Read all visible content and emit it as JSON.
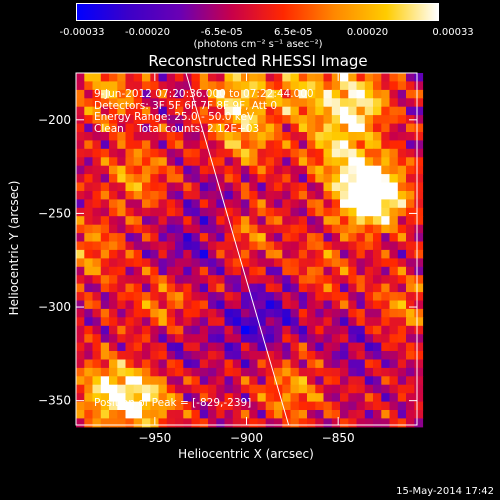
{
  "colorbar": {
    "ticks": [
      "-0.00033",
      "-0.00020",
      "-6.5e-05",
      "6.5e-05",
      "0.00020",
      "0.00033"
    ],
    "units": "(photons cm⁻² s⁻¹ asec⁻²)",
    "colors": [
      "#0000ff",
      "#3c00c8",
      "#6a00b4",
      "#c8004a",
      "#ff2800",
      "#ff8800",
      "#ffcc00",
      "#ffffff"
    ]
  },
  "chart_data": {
    "type": "heatmap",
    "title": "Reconstructed RHESSI Image",
    "xlabel": "Heliocentric X (arcsec)",
    "ylabel": "Heliocentric Y (arcsec)",
    "xlim": [
      -993,
      -807
    ],
    "ylim": [
      -363,
      -175
    ],
    "x_ticks": [
      -950,
      -900,
      -850
    ],
    "y_ticks": [
      -200,
      -250,
      -300,
      -350
    ],
    "x_tick_labels": [
      "−950",
      "−900",
      "−850"
    ],
    "y_tick_labels": [
      "−200",
      "−250",
      "−300",
      "−350"
    ],
    "color_range": [
      -0.00033,
      0.00033
    ],
    "peak_position": [
      -829,
      -239
    ],
    "limb_line": [
      [
        -933,
        -175
      ],
      [
        -877,
        -363
      ]
    ],
    "hotspots": [
      {
        "x": -840,
        "y": -190,
        "v": 0.00033
      },
      {
        "x": -836,
        "y": -240,
        "v": 0.0003
      },
      {
        "x": -829,
        "y": -239,
        "v": 0.00033
      },
      {
        "x": -850,
        "y": -215,
        "v": 0.00024
      },
      {
        "x": -900,
        "y": -210,
        "v": 0.0002
      },
      {
        "x": -905,
        "y": -185,
        "v": 0.00025
      },
      {
        "x": -870,
        "y": -185,
        "v": 0.00022
      },
      {
        "x": -960,
        "y": -230,
        "v": 0.00018
      },
      {
        "x": -975,
        "y": -185,
        "v": 0.0002
      },
      {
        "x": -975,
        "y": -345,
        "v": 0.0003
      },
      {
        "x": -955,
        "y": -350,
        "v": 0.00026
      },
      {
        "x": -875,
        "y": -345,
        "v": 0.00018
      },
      {
        "x": -985,
        "y": -270,
        "v": 0.00016
      },
      {
        "x": -900,
        "y": -260,
        "v": 0.00014
      },
      {
        "x": -945,
        "y": -300,
        "v": 0.00016
      },
      {
        "x": -815,
        "y": -300,
        "v": 0.00015
      },
      {
        "x": -860,
        "y": -280,
        "v": 0.00012
      }
    ],
    "coldspots": [
      {
        "x": -930,
        "y": -270,
        "v": -0.00012
      },
      {
        "x": -900,
        "y": -310,
        "v": -0.00015
      },
      {
        "x": -880,
        "y": -300,
        "v": -0.0001
      },
      {
        "x": -940,
        "y": -320,
        "v": -9e-05
      },
      {
        "x": -840,
        "y": -320,
        "v": -9e-05
      },
      {
        "x": -915,
        "y": -245,
        "v": -8e-05
      }
    ]
  },
  "info": {
    "date_range": "9-Jun-2012 07:20:36.000 to 07:22:44.000",
    "detectors": "Detectors: 3F 5F 6F 7F 8F 9F, Att 0",
    "energy": "Energy Range: 25.0 - 50.0 keV",
    "method": "Clean    Total counts: 2.12E+03",
    "peak": "Position of Peak = [-829,-239]"
  },
  "timestamp": "15-May-2014 17:42"
}
